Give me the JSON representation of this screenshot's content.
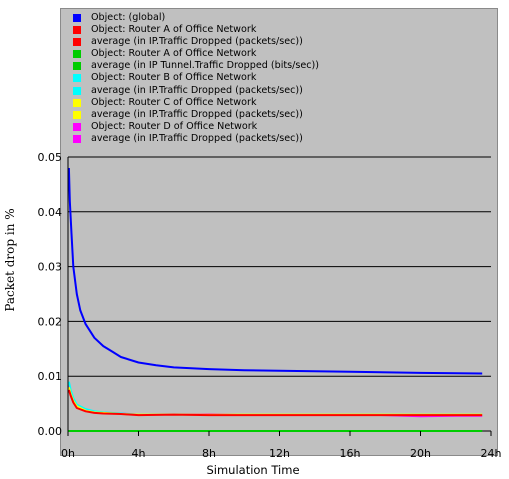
{
  "chart_data": {
    "type": "line",
    "xlabel": "Simulation Time",
    "ylabel": "Packet drop in %",
    "xlim": [
      0,
      24
    ],
    "ylim": [
      0,
      0.05
    ],
    "x_ticks": [
      "0h",
      "4h",
      "8h",
      "12h",
      "16h",
      "20h",
      "24h"
    ],
    "x_tick_values": [
      0,
      4,
      8,
      12,
      16,
      20,
      24
    ],
    "y_ticks": [
      "0.00",
      "0.01",
      "0.02",
      "0.03",
      "0.04",
      "0.05"
    ],
    "y_tick_values": [
      0,
      0.01,
      0.02,
      0.03,
      0.04,
      0.05
    ],
    "grid": "horizontal",
    "legend_placement": "top",
    "legend": [
      {
        "label": "Object: (global)",
        "color": "#0000ff"
      },
      {
        "label": "Object: Router A of Office Network",
        "color": "#ff0000"
      },
      {
        "label": "average (in IP.Traffic Dropped (packets/sec))",
        "color": "#ff0000"
      },
      {
        "label": "Object: Router A of Office Network",
        "color": "#00cc00"
      },
      {
        "label": "average (in IP Tunnel.Traffic Dropped (bits/sec))",
        "color": "#00cc00"
      },
      {
        "label": "Object: Router B of Office Network",
        "color": "#00ffff"
      },
      {
        "label": "average (in IP.Traffic Dropped (packets/sec))",
        "color": "#00ffff"
      },
      {
        "label": "Object: Router C of Office Network",
        "color": "#ffff00"
      },
      {
        "label": "average (in IP.Traffic Dropped (packets/sec))",
        "color": "#ffff00"
      },
      {
        "label": "Object: Router D of Office Network",
        "color": "#ff00ff"
      },
      {
        "label": "average (in IP.Traffic Dropped (packets/sec))",
        "color": "#ff00ff"
      }
    ],
    "series": [
      {
        "color": "#0000ff",
        "x": [
          0.05,
          0.1,
          0.2,
          0.3,
          0.5,
          0.7,
          1.0,
          1.5,
          2,
          2.5,
          3,
          4,
          5,
          6,
          8,
          10,
          12,
          16,
          20,
          23.5
        ],
        "y": [
          0.048,
          0.042,
          0.036,
          0.03,
          0.025,
          0.022,
          0.0195,
          0.017,
          0.0155,
          0.0145,
          0.0135,
          0.0125,
          0.012,
          0.0116,
          0.0113,
          0.0111,
          0.011,
          0.0108,
          0.0106,
          0.0105
        ]
      },
      {
        "color": "#ff00ff",
        "x": [
          0.05,
          0.15,
          0.3,
          0.5,
          1,
          1.5,
          2,
          3,
          4,
          6,
          8,
          10,
          12,
          14,
          16,
          18,
          20,
          22,
          23.5
        ],
        "y": [
          0.0085,
          0.007,
          0.0058,
          0.0045,
          0.0038,
          0.0035,
          0.0033,
          0.0032,
          0.003,
          0.003,
          0.0031,
          0.003,
          0.003,
          0.003,
          0.003,
          0.0029,
          0.0027,
          0.0028,
          0.0028
        ]
      },
      {
        "color": "#00ffff",
        "x": [
          0.05,
          0.15,
          0.3,
          0.5,
          1,
          1.5,
          2,
          3,
          4,
          6,
          8,
          10,
          12,
          14,
          16,
          18,
          20,
          22,
          23.5
        ],
        "y": [
          0.009,
          0.0075,
          0.006,
          0.0048,
          0.004,
          0.0036,
          0.0034,
          0.0032,
          0.003,
          0.003,
          0.003,
          0.003,
          0.003,
          0.003,
          0.003,
          0.003,
          0.003,
          0.003,
          0.003
        ]
      },
      {
        "color": "#ffff00",
        "x": [
          0.05,
          0.15,
          0.3,
          0.5,
          1,
          1.5,
          2,
          3,
          4,
          6,
          8,
          10,
          12,
          14,
          16,
          18,
          20,
          22,
          23.5
        ],
        "y": [
          0.008,
          0.0068,
          0.0055,
          0.0045,
          0.0037,
          0.0034,
          0.0033,
          0.0031,
          0.003,
          0.003,
          0.003,
          0.003,
          0.003,
          0.003,
          0.003,
          0.003,
          0.003,
          0.003,
          0.003
        ]
      },
      {
        "color": "#ff0000",
        "x": [
          0.05,
          0.15,
          0.3,
          0.5,
          1,
          1.5,
          2,
          3,
          4,
          6,
          8,
          10,
          12,
          14,
          16,
          18,
          20,
          22,
          23.5
        ],
        "y": [
          0.0075,
          0.0065,
          0.0052,
          0.0042,
          0.0036,
          0.0033,
          0.0032,
          0.0031,
          0.0029,
          0.003,
          0.0029,
          0.0029,
          0.0029,
          0.0029,
          0.0029,
          0.0029,
          0.0029,
          0.0029,
          0.0029
        ]
      },
      {
        "color": "#00cc00",
        "x": [
          0,
          4,
          8,
          12,
          16,
          20,
          23.5
        ],
        "y": [
          0,
          0,
          0,
          0,
          0,
          0,
          0
        ]
      }
    ]
  }
}
